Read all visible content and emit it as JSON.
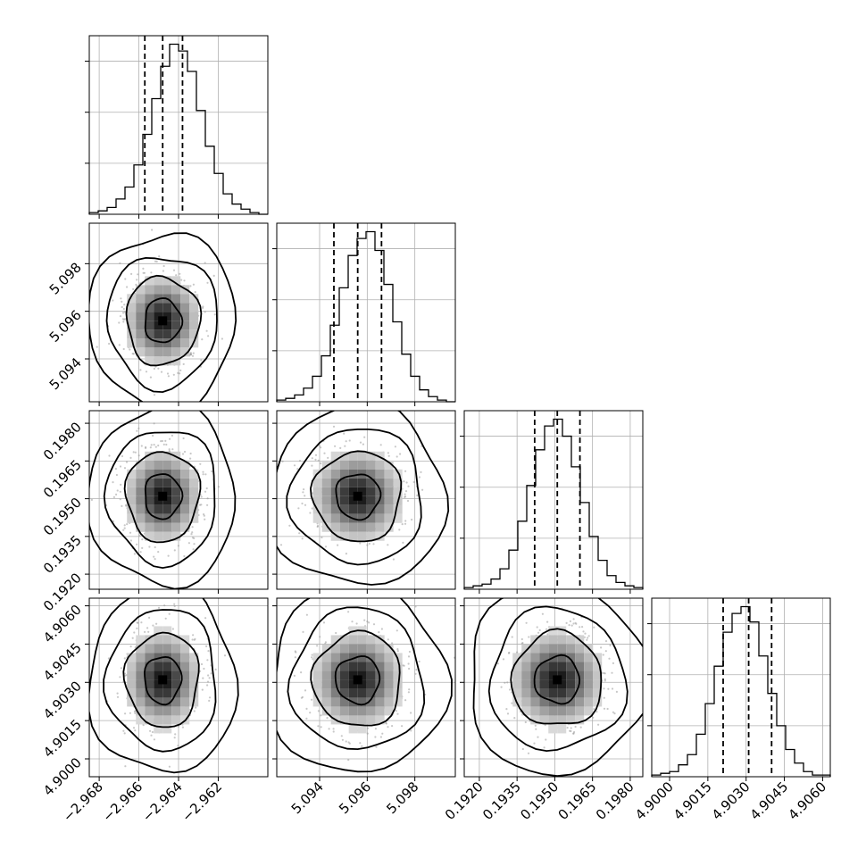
{
  "chart_data": {
    "type": "corner",
    "parameters": [
      {
        "mean": -2.9648,
        "sigma": 0.00095,
        "range": [
          -2.9685,
          -2.9595
        ],
        "ticks": [
          -2.968,
          -2.966,
          -2.964,
          -2.962
        ],
        "tick_labels": [
          "−2.968",
          "−2.966",
          "−2.964",
          "−2.962"
        ],
        "quantiles": [
          -2.9657,
          -2.9648,
          -2.9638
        ]
      },
      {
        "mean": 5.0956,
        "sigma": 0.00095,
        "range": [
          5.0922,
          5.0997
        ],
        "ticks": [
          5.094,
          5.096,
          5.098
        ],
        "tick_labels": [
          "5.094",
          "5.096",
          "5.098"
        ],
        "quantiles": [
          5.0946,
          5.0956,
          5.0966
        ]
      },
      {
        "mean": 0.1951,
        "sigma": 0.00092,
        "range": [
          0.1914,
          0.1985
        ],
        "ticks": [
          0.192,
          0.1935,
          0.195,
          0.1965,
          0.198
        ],
        "tick_labels": [
          "0.1920",
          "0.1935",
          "0.1950",
          "0.1965",
          "0.1980"
        ],
        "quantiles": [
          0.1942,
          0.1951,
          0.196
        ]
      },
      {
        "mean": 4.9031,
        "sigma": 0.00095,
        "range": [
          4.8993,
          4.9063
        ],
        "ticks": [
          4.9,
          4.9015,
          4.903,
          4.9045,
          4.906
        ],
        "tick_labels": [
          "4.9000",
          "4.9015",
          "4.9030",
          "4.9045",
          "4.9060"
        ],
        "quantiles": [
          4.9021,
          4.9031,
          4.904
        ]
      }
    ],
    "histogram_counts": [
      [
        1,
        2,
        4,
        9,
        16,
        29,
        47,
        68,
        87,
        100,
        96,
        84,
        61,
        40,
        24,
        12,
        6,
        3,
        1,
        0
      ],
      [
        1,
        2,
        4,
        8,
        15,
        27,
        45,
        67,
        86,
        96,
        100,
        89,
        69,
        47,
        28,
        15,
        7,
        3,
        1,
        0
      ],
      [
        1,
        2,
        3,
        6,
        12,
        23,
        40,
        61,
        82,
        96,
        100,
        90,
        72,
        51,
        31,
        17,
        8,
        4,
        2,
        1
      ],
      [
        1,
        2,
        3,
        7,
        13,
        25,
        43,
        65,
        85,
        96,
        100,
        91,
        71,
        49,
        30,
        16,
        8,
        3,
        1,
        1
      ]
    ],
    "contour_levels_sigma": [
      0.5,
      1.0,
      1.5,
      2.0
    ],
    "grid": true
  }
}
